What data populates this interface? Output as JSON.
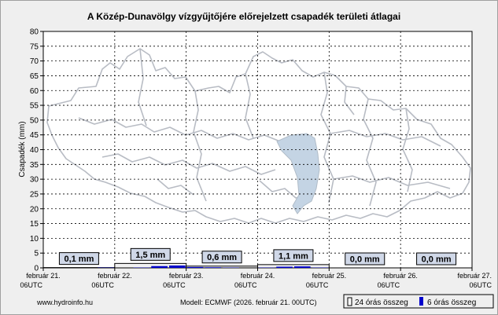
{
  "title": "A Közép-Dunavölgy vízgyűjtőjére előrejelzett csapadék területi átlagai",
  "footer": {
    "site": "www.hydroinfo.hu",
    "model": "Modell: ECMWF (2026. február 21. 00UTC)"
  },
  "legend": {
    "daily": "24 órás összeg",
    "six_hour": "6 órás összeg"
  },
  "colors": {
    "background": "#efefef",
    "plot_background": "#ffffff",
    "grid": "#000000",
    "six_hour_bar": "#0000cc",
    "daily_bar": "#f2f2f2",
    "label_box": "#d0d8e8",
    "map_outline": "#b8bcc4",
    "lake": "#c4d4e4"
  },
  "chart_data": {
    "type": "bar",
    "title": "A Közép-Dunavölgy vízgyűjtőjére előrejelzett csapadék területi átlagai",
    "ylabel": "Csapadék (mm)",
    "ylim": [
      0,
      80
    ],
    "ytick_step": 5,
    "grid": true,
    "x_ticks": [
      {
        "date": "február 21.",
        "time": "06UTC"
      },
      {
        "date": "február 22.",
        "time": "06UTC"
      },
      {
        "date": "február 23.",
        "time": "06UTC"
      },
      {
        "date": "február 24.",
        "time": "06UTC"
      },
      {
        "date": "február 25.",
        "time": "06UTC"
      },
      {
        "date": "február 26.",
        "time": "06UTC"
      },
      {
        "date": "február 27.",
        "time": "06UTC"
      }
    ],
    "daily_totals": [
      {
        "label": "0,1 mm",
        "value": 0.1
      },
      {
        "label": "1,5 mm",
        "value": 1.5
      },
      {
        "label": "0,6 mm",
        "value": 0.6
      },
      {
        "label": "1,1 mm",
        "value": 1.1
      },
      {
        "label": "0,0 mm",
        "value": 0.0
      },
      {
        "label": "0,0 mm",
        "value": 0.0
      }
    ],
    "six_hour_values": [
      0.0,
      0.0,
      0.0,
      0.1,
      0.0,
      0.1,
      0.6,
      0.8,
      0.3,
      0.2,
      0.1,
      0.0,
      0.1,
      0.4,
      0.5,
      0.1,
      0.0,
      0.0,
      0.0,
      0.0,
      0.0,
      0.0,
      0.0,
      0.0
    ]
  }
}
